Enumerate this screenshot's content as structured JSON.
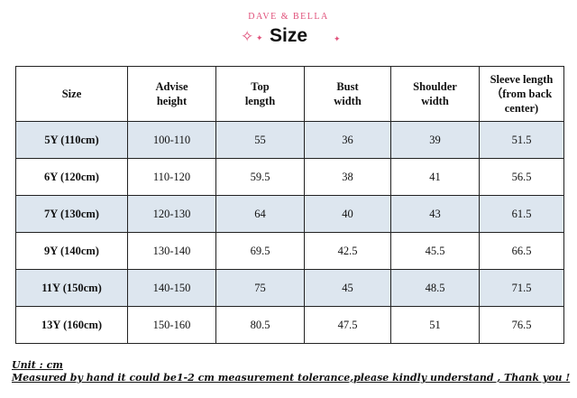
{
  "brand": "DAVE & BELLA",
  "title": "Size",
  "headers": [
    "Size",
    "Advise\nheight",
    "Top\nlength",
    "Bust\nwidth",
    "Shoulder\nwidth",
    "Sleeve length\n（from back\ncenter)"
  ],
  "rows": [
    [
      "5Y (110cm)",
      "100-110",
      "55",
      "36",
      "39",
      "51.5"
    ],
    [
      "6Y (120cm)",
      "110-120",
      "59.5",
      "38",
      "41",
      "56.5"
    ],
    [
      "7Y (130cm)",
      "120-130",
      "64",
      "40",
      "43",
      "61.5"
    ],
    [
      "9Y (140cm)",
      "130-140",
      "69.5",
      "42.5",
      "45.5",
      "66.5"
    ],
    [
      "11Y (150cm)",
      "140-150",
      "75",
      "45",
      "48.5",
      "71.5"
    ],
    [
      "13Y (160cm)",
      "150-160",
      "80.5",
      "47.5",
      "51",
      "76.5"
    ]
  ],
  "notes": {
    "unit": "Unit : cm",
    "tolerance": "Measured by hand it could be1-2 cm measurement tolerance,please kindly understand , Thank you !"
  },
  "colors": {
    "accent": "#e0507a",
    "row_shade": "#dde6ef"
  },
  "icons": [
    "sparkle-icon",
    "sparkle-icon",
    "sparkle-icon"
  ]
}
